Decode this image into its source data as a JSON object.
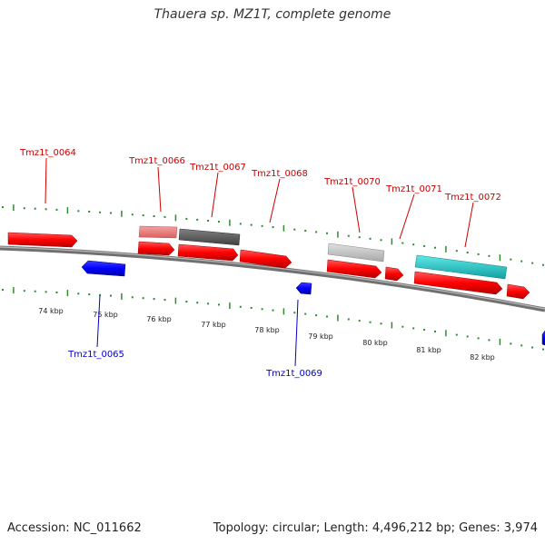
{
  "header": {
    "title": "Thauera sp. MZ1T, complete genome"
  },
  "footer": {
    "accession": "Accession: NC_011662",
    "summary": "Topology: circular; Length: 4,496,212 bp; Genes: 3,974"
  },
  "scale": {
    "ticks": [
      "74 kbp",
      "75 kbp",
      "76 kbp",
      "77 kbp",
      "78 kbp",
      "79 kbp",
      "80 kbp",
      "81 kbp",
      "82 kbp"
    ]
  },
  "colors": {
    "forward": "#ff0000",
    "reverse": "#0000ff",
    "backbone": "#808080",
    "grid": "#2e8b2e",
    "pink": "#f08080",
    "darkgray": "#606060",
    "lightgray": "#c8c8c8",
    "cyan": "#20c8c8"
  },
  "genes": [
    {
      "label": "Tmz1t_0064",
      "strand": "forward"
    },
    {
      "label": "Tmz1t_0065",
      "strand": "reverse"
    },
    {
      "label": "Tmz1t_0066",
      "strand": "forward"
    },
    {
      "label": "Tmz1t_0067",
      "strand": "forward"
    },
    {
      "label": "Tmz1t_0068",
      "strand": "forward"
    },
    {
      "label": "Tmz1t_0069",
      "strand": "reverse"
    },
    {
      "label": "Tmz1t_0070",
      "strand": "forward"
    },
    {
      "label": "Tmz1t_0071",
      "strand": "forward"
    },
    {
      "label": "Tmz1t_0072",
      "strand": "forward"
    }
  ]
}
